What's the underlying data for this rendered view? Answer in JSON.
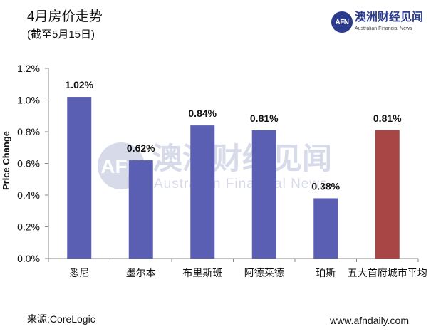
{
  "header": {
    "title": "4月房价走势",
    "subtitle": "(截至5月15日)"
  },
  "logo": {
    "badge": "AFN",
    "name": "澳洲财经见闻",
    "sub": "Australian Financial News"
  },
  "watermark": {
    "name": "澳洲财经见闻",
    "sub": "Australian Financial News"
  },
  "footer": {
    "source": "来源:CoreLogic",
    "website": "www.afndaily.com"
  },
  "colors": {
    "bar": "#5b5fb3",
    "highlight": "#a84545",
    "axis": "#888888"
  },
  "chart_data": {
    "type": "bar",
    "ylabel": "Price Change",
    "categories": [
      "悉尼",
      "墨尔本",
      "布里斯班",
      "阿德莱德",
      "珀斯",
      "五大首府城市平均"
    ],
    "values": [
      1.02,
      0.62,
      0.84,
      0.81,
      0.38,
      0.81
    ],
    "data_labels": [
      "1.02%",
      "0.62%",
      "0.84%",
      "0.81%",
      "0.38%",
      "0.81%"
    ],
    "highlight_index": 5,
    "ylim": [
      0,
      1.2
    ],
    "yticks": [
      0,
      0.2,
      0.4,
      0.6,
      0.8,
      1.0,
      1.2
    ],
    "ytick_labels": [
      "0.0%",
      "0.2%",
      "0.4%",
      "0.6%",
      "0.8%",
      "1.0%",
      "1.2%"
    ],
    "grid": false,
    "legend": "none"
  }
}
